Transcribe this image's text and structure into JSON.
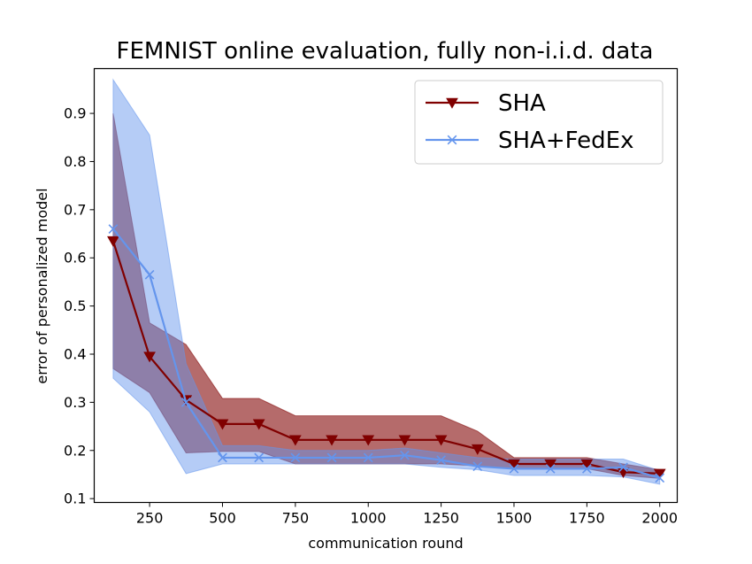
{
  "chart_data": {
    "type": "line",
    "title": "FEMNIST online evaluation, fully non-i.i.d. data",
    "xlabel": "communication round",
    "ylabel": "error of personalized model",
    "xlim": [
      60,
      2060
    ],
    "ylim": [
      0.092,
      0.993
    ],
    "xticks": [
      250,
      500,
      750,
      1000,
      1250,
      1500,
      1750,
      2000
    ],
    "yticks": [
      0.1,
      0.2,
      0.3,
      0.4,
      0.5,
      0.6,
      0.7,
      0.8,
      0.9
    ],
    "grid": false,
    "legend_position": "top-right",
    "x": [
      125,
      250,
      375,
      500,
      625,
      750,
      875,
      1000,
      1125,
      1250,
      1375,
      1500,
      1625,
      1750,
      1875,
      2000
    ],
    "series": [
      {
        "name": "SHA",
        "color": "#800000",
        "marker": "triangle-down",
        "values": [
          0.635,
          0.395,
          0.305,
          0.255,
          0.255,
          0.222,
          0.222,
          0.222,
          0.222,
          0.222,
          0.203,
          0.172,
          0.172,
          0.172,
          0.155,
          0.152
        ],
        "band_upper": [
          0.9,
          0.465,
          0.42,
          0.308,
          0.308,
          0.272,
          0.272,
          0.272,
          0.272,
          0.272,
          0.24,
          0.185,
          0.185,
          0.185,
          0.172,
          0.16
        ],
        "band_lower": [
          0.37,
          0.32,
          0.195,
          0.198,
          0.198,
          0.172,
          0.172,
          0.172,
          0.172,
          0.172,
          0.168,
          0.162,
          0.162,
          0.162,
          0.148,
          0.142
        ]
      },
      {
        "name": "SHA+FedEx",
        "color": "#6495ed",
        "marker": "x",
        "values": [
          0.66,
          0.565,
          0.3,
          0.185,
          0.185,
          0.185,
          0.185,
          0.185,
          0.19,
          0.18,
          0.167,
          0.162,
          0.162,
          0.162,
          0.165,
          0.143
        ],
        "band_upper": [
          0.97,
          0.855,
          0.38,
          0.21,
          0.21,
          0.2,
          0.2,
          0.2,
          0.205,
          0.195,
          0.185,
          0.182,
          0.182,
          0.182,
          0.182,
          0.158
        ],
        "band_lower": [
          0.35,
          0.28,
          0.152,
          0.172,
          0.172,
          0.172,
          0.172,
          0.172,
          0.172,
          0.165,
          0.16,
          0.148,
          0.148,
          0.148,
          0.145,
          0.13
        ]
      }
    ]
  }
}
